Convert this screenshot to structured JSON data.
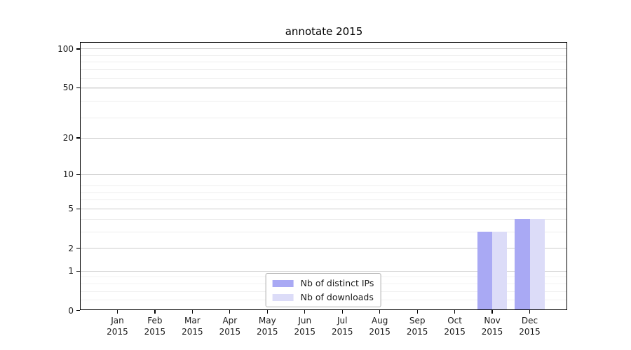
{
  "chart_data": {
    "type": "bar",
    "title": "annotate 2015",
    "categories": [
      "Jan",
      "Feb",
      "Mar",
      "Apr",
      "May",
      "Jun",
      "Jul",
      "Aug",
      "Sep",
      "Oct",
      "Nov",
      "Dec"
    ],
    "year_label": "2015",
    "series": [
      {
        "name": "Nb of distinct IPs",
        "color": "#a9a9f4",
        "values": [
          0,
          0,
          0,
          0,
          0,
          0,
          0,
          0,
          0,
          0,
          3,
          4
        ]
      },
      {
        "name": "Nb of downloads",
        "color": "#dcdcf8",
        "values": [
          0,
          0,
          0,
          0,
          0,
          0,
          0,
          0,
          0,
          0,
          3,
          4
        ]
      }
    ],
    "yscale": "log1p",
    "ytick_values": [
      0,
      1,
      2,
      5,
      10,
      20,
      50,
      100
    ],
    "ytick_labels": [
      "0",
      "1",
      "2",
      "5",
      "10",
      "20",
      "50",
      "100"
    ],
    "ytick_minor_values": [
      0.2,
      0.4,
      0.6,
      0.8,
      3,
      4,
      6,
      7,
      8,
      29,
      39,
      49,
      59,
      69,
      79,
      89
    ],
    "ylim": [
      0,
      113
    ],
    "grid": true,
    "legend_position": "lower center",
    "grid_major_color": "#cccccc",
    "grid_minor_color": "#ededed",
    "background_color": "#ffffff",
    "spine_color": "#000000"
  }
}
